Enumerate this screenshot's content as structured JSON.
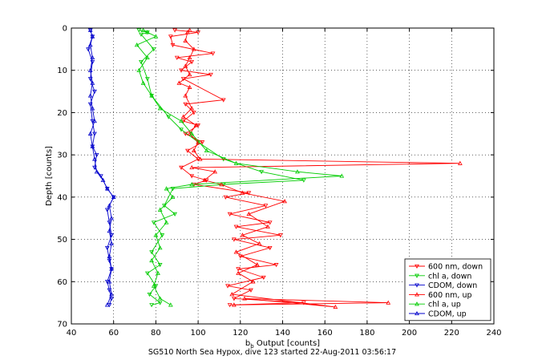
{
  "chart_data": {
    "type": "line",
    "xlabel_main": "b",
    "xlabel_sub": "b",
    "xlabel_rest": " Output [counts]",
    "ylabel": "Depth [counts]",
    "caption": "SG510 North Sea Hypox, dive 123 started 22-Aug-2011 03:56:17",
    "xlim": [
      40,
      240
    ],
    "ylim": [
      0,
      70
    ],
    "y_reversed": true,
    "x_ticks": [
      "40",
      "60",
      "80",
      "100",
      "120",
      "140",
      "160",
      "180",
      "200",
      "220",
      "240"
    ],
    "y_ticks": [
      "0",
      "10",
      "20",
      "30",
      "40",
      "50",
      "60",
      "70"
    ],
    "grid": true,
    "legend_position": "bottom-right",
    "series": [
      {
        "name": "600 nm, down",
        "color": "#ff0000",
        "marker": "triangle-down",
        "points": [
          [
            89,
            0.5
          ],
          [
            100,
            1
          ],
          [
            87,
            2
          ],
          [
            88,
            4
          ],
          [
            107,
            6
          ],
          [
            90,
            7
          ],
          [
            97,
            8
          ],
          [
            92,
            10
          ],
          [
            106,
            11
          ],
          [
            93,
            12
          ],
          [
            112,
            17
          ],
          [
            94,
            18
          ],
          [
            98,
            20
          ],
          [
            93,
            22
          ],
          [
            100,
            23
          ],
          [
            94,
            25
          ],
          [
            102,
            27
          ],
          [
            95,
            29
          ],
          [
            100,
            31
          ],
          [
            92,
            33
          ],
          [
            97,
            35
          ],
          [
            104,
            36
          ],
          [
            98,
            37
          ],
          [
            124,
            39
          ],
          [
            113,
            40
          ],
          [
            132,
            42
          ],
          [
            115,
            44
          ],
          [
            134,
            46
          ],
          [
            118,
            47
          ],
          [
            139,
            49
          ],
          [
            117,
            50
          ],
          [
            134,
            52
          ],
          [
            120,
            54
          ],
          [
            137,
            56
          ],
          [
            119,
            57
          ],
          [
            131,
            59
          ],
          [
            114,
            61
          ],
          [
            125,
            62
          ],
          [
            117,
            64
          ],
          [
            150,
            65
          ],
          [
            115,
            65.5
          ]
        ]
      },
      {
        "name": "chl a, down",
        "color": "#00cc00",
        "marker": "triangle-down",
        "points": [
          [
            72,
            0.5
          ],
          [
            76,
            1
          ],
          [
            73,
            1.5
          ],
          [
            79,
            5
          ],
          [
            73,
            8
          ],
          [
            76,
            12
          ],
          [
            78,
            16
          ],
          [
            86,
            21
          ],
          [
            92,
            24
          ],
          [
            100,
            27
          ],
          [
            112,
            31
          ],
          [
            130,
            34
          ],
          [
            150,
            36
          ],
          [
            112,
            37
          ],
          [
            88,
            38
          ],
          [
            84,
            42
          ],
          [
            89,
            44
          ],
          [
            79,
            46
          ],
          [
            83,
            49
          ],
          [
            78,
            53
          ],
          [
            82,
            56
          ],
          [
            76,
            58
          ],
          [
            80,
            61
          ],
          [
            77,
            63
          ],
          [
            82,
            65
          ],
          [
            78,
            65.5
          ]
        ]
      },
      {
        "name": "CDOM, down",
        "color": "#0000cc",
        "marker": "triangle-down",
        "points": [
          [
            49,
            0.5
          ],
          [
            50,
            2
          ],
          [
            48,
            5
          ],
          [
            50,
            8
          ],
          [
            49,
            12
          ],
          [
            51,
            15
          ],
          [
            49,
            18
          ],
          [
            50,
            22
          ],
          [
            51,
            25
          ],
          [
            50,
            28
          ],
          [
            52,
            30
          ],
          [
            51,
            33
          ],
          [
            54,
            35
          ],
          [
            57,
            38
          ],
          [
            60,
            40
          ],
          [
            57,
            43
          ],
          [
            58,
            46
          ],
          [
            59,
            49
          ],
          [
            57,
            52
          ],
          [
            58,
            55
          ],
          [
            59,
            57
          ],
          [
            57,
            60
          ],
          [
            58,
            62
          ],
          [
            59,
            64
          ],
          [
            58,
            65.5
          ]
        ]
      },
      {
        "name": "600 nm, up",
        "color": "#ff0000",
        "marker": "triangle-up",
        "points": [
          [
            117,
            65.5
          ],
          [
            190,
            65
          ],
          [
            122,
            64
          ],
          [
            165,
            66
          ],
          [
            116,
            63
          ],
          [
            126,
            60
          ],
          [
            119,
            58
          ],
          [
            128,
            56
          ],
          [
            118,
            53
          ],
          [
            129,
            51
          ],
          [
            121,
            49
          ],
          [
            133,
            47
          ],
          [
            124,
            44
          ],
          [
            141,
            41
          ],
          [
            121,
            39
          ],
          [
            111,
            37
          ],
          [
            103,
            36
          ],
          [
            108,
            34
          ],
          [
            97,
            33
          ],
          [
            224,
            32
          ],
          [
            101,
            31
          ],
          [
            98,
            29
          ],
          [
            100,
            27
          ],
          [
            96,
            25
          ],
          [
            99,
            23
          ],
          [
            93,
            21
          ],
          [
            97,
            19
          ],
          [
            94,
            16
          ],
          [
            96,
            14
          ],
          [
            91,
            13
          ],
          [
            96,
            11
          ],
          [
            94,
            9
          ],
          [
            96,
            7
          ],
          [
            98,
            5
          ],
          [
            94,
            3
          ],
          [
            95,
            1
          ],
          [
            96,
            0.5
          ]
        ]
      },
      {
        "name": "chl a, up",
        "color": "#00cc00",
        "marker": "triangle-up",
        "points": [
          [
            87,
            65.5
          ],
          [
            82,
            64
          ],
          [
            79,
            61
          ],
          [
            81,
            58
          ],
          [
            78,
            55
          ],
          [
            82,
            52
          ],
          [
            80,
            49
          ],
          [
            85,
            46
          ],
          [
            82,
            43
          ],
          [
            88,
            40
          ],
          [
            85,
            38
          ],
          [
            97,
            37
          ],
          [
            168,
            35
          ],
          [
            147,
            34
          ],
          [
            118,
            32
          ],
          [
            104,
            29
          ],
          [
            97,
            25
          ],
          [
            92,
            22
          ],
          [
            82,
            19
          ],
          [
            78,
            16
          ],
          [
            74,
            13
          ],
          [
            72,
            10
          ],
          [
            76,
            7
          ],
          [
            71,
            4
          ],
          [
            80,
            2
          ],
          [
            76,
            1
          ],
          [
            74,
            0.5
          ]
        ]
      },
      {
        "name": "CDOM, up",
        "color": "#0000cc",
        "marker": "triangle-up",
        "points": [
          [
            57,
            65.5
          ],
          [
            59,
            63
          ],
          [
            58,
            60
          ],
          [
            59,
            57
          ],
          [
            58,
            54
          ],
          [
            59,
            51
          ],
          [
            58,
            48
          ],
          [
            59,
            45
          ],
          [
            58,
            42
          ],
          [
            60,
            40
          ],
          [
            57,
            38
          ],
          [
            55,
            36
          ],
          [
            52,
            34
          ],
          [
            51,
            31
          ],
          [
            50,
            28
          ],
          [
            49,
            25
          ],
          [
            51,
            22
          ],
          [
            50,
            19
          ],
          [
            49,
            16
          ],
          [
            50,
            13
          ],
          [
            49,
            10
          ],
          [
            50,
            7
          ],
          [
            49,
            4
          ],
          [
            50,
            2
          ],
          [
            49,
            0.5
          ]
        ]
      }
    ]
  }
}
